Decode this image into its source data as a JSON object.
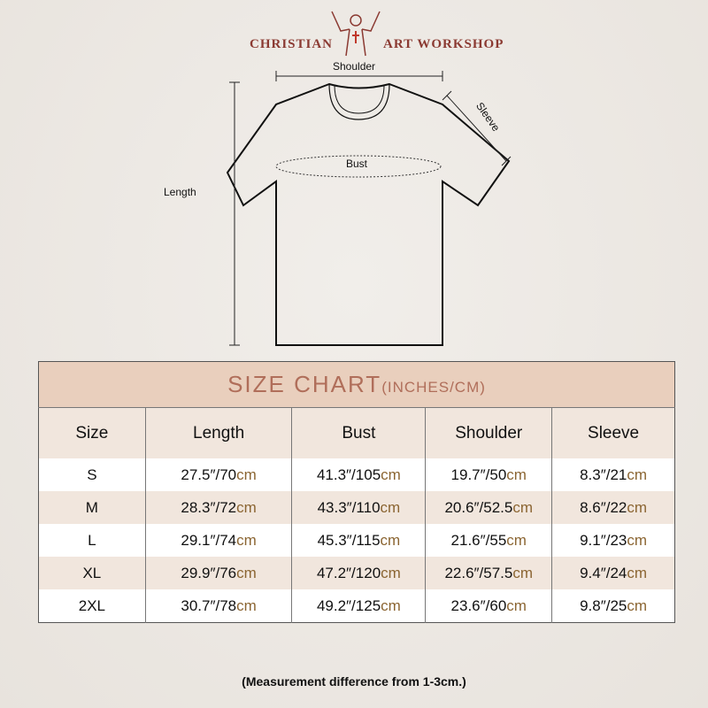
{
  "brand": {
    "left": "CHRISTIAN",
    "right": "ART WORKSHOP"
  },
  "diagram": {
    "shoulder": "Shoulder",
    "sleeve": "Sleeve",
    "bust": "Bust",
    "length": "Length"
  },
  "chart": {
    "title": "SIZE CHART",
    "title_unit": "(INCHES/CM)",
    "headers": [
      "Size",
      "Length",
      "Bust",
      "Shoulder",
      "Sleeve"
    ],
    "unit": "cm",
    "rows": [
      {
        "size": "S",
        "values": [
          "27.5″/70",
          "41.3″/105",
          "19.7″/50",
          "8.3″/21"
        ]
      },
      {
        "size": "M",
        "values": [
          "28.3″/72",
          "43.3″/110",
          "20.6″/52.5",
          "8.6″/22"
        ]
      },
      {
        "size": "L",
        "values": [
          "29.1″/74",
          "45.3″/115",
          "21.6″/55",
          "9.1″/23"
        ]
      },
      {
        "size": "XL",
        "values": [
          "29.9″/76",
          "47.2″/120",
          "22.6″/57.5",
          "9.4″/24"
        ]
      },
      {
        "size": "2XL",
        "values": [
          "30.7″/78",
          "49.2″/125",
          "23.6″/60",
          "9.8″/25"
        ]
      }
    ]
  },
  "note": "(Measurement difference from 1-3cm.)"
}
